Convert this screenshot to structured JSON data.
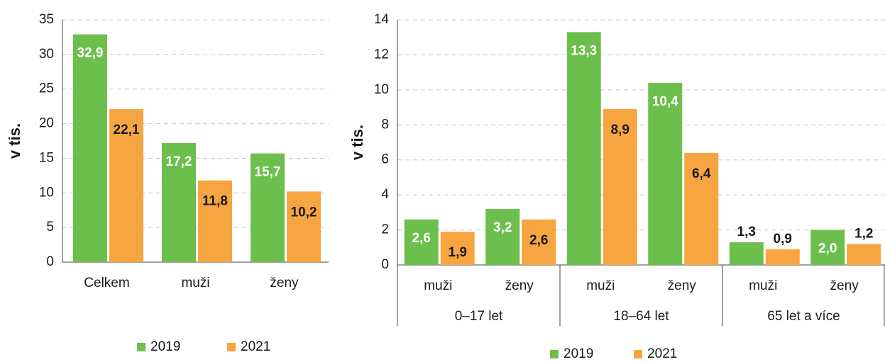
{
  "chart_data": [
    {
      "type": "bar",
      "ylabel": "v tis.",
      "categories": [
        "Celkem",
        "muži",
        "ženy"
      ],
      "ylim": [
        0,
        35
      ],
      "yticks": [
        0,
        5,
        10,
        15,
        20,
        25,
        30,
        35
      ],
      "grid": true,
      "series": [
        {
          "name": "2019",
          "color": "#6cbf4c",
          "values": [
            32.9,
            17.2,
            15.7
          ],
          "value_labels": [
            "32,9",
            "17,2",
            "15,7"
          ]
        },
        {
          "name": "2021",
          "color": "#f7a541",
          "values": [
            22.1,
            11.8,
            10.2
          ],
          "value_labels": [
            "22,1",
            "11,8",
            "10,2"
          ]
        }
      ]
    },
    {
      "type": "bar",
      "ylabel": "v tis.",
      "categories": [
        "muži",
        "ženy",
        "muži",
        "ženy",
        "muži",
        "ženy"
      ],
      "groups": [
        "0–17 let",
        "18–64 let",
        "65 let a více"
      ],
      "ylim": [
        0,
        14
      ],
      "yticks": [
        0,
        2,
        4,
        6,
        8,
        10,
        12,
        14
      ],
      "grid": true,
      "series": [
        {
          "name": "2019",
          "color": "#6cbf4c",
          "values": [
            2.6,
            3.2,
            13.3,
            10.4,
            1.3,
            2.0
          ],
          "value_labels": [
            "2,6",
            "3,2",
            "13,3",
            "10,4",
            "1,3",
            "2,0"
          ]
        },
        {
          "name": "2021",
          "color": "#f7a541",
          "values": [
            1.9,
            2.6,
            8.9,
            6.4,
            0.9,
            1.2
          ],
          "value_labels": [
            "1,9",
            "2,6",
            "8,9",
            "6,4",
            "0,9",
            "1,2"
          ]
        }
      ]
    }
  ]
}
